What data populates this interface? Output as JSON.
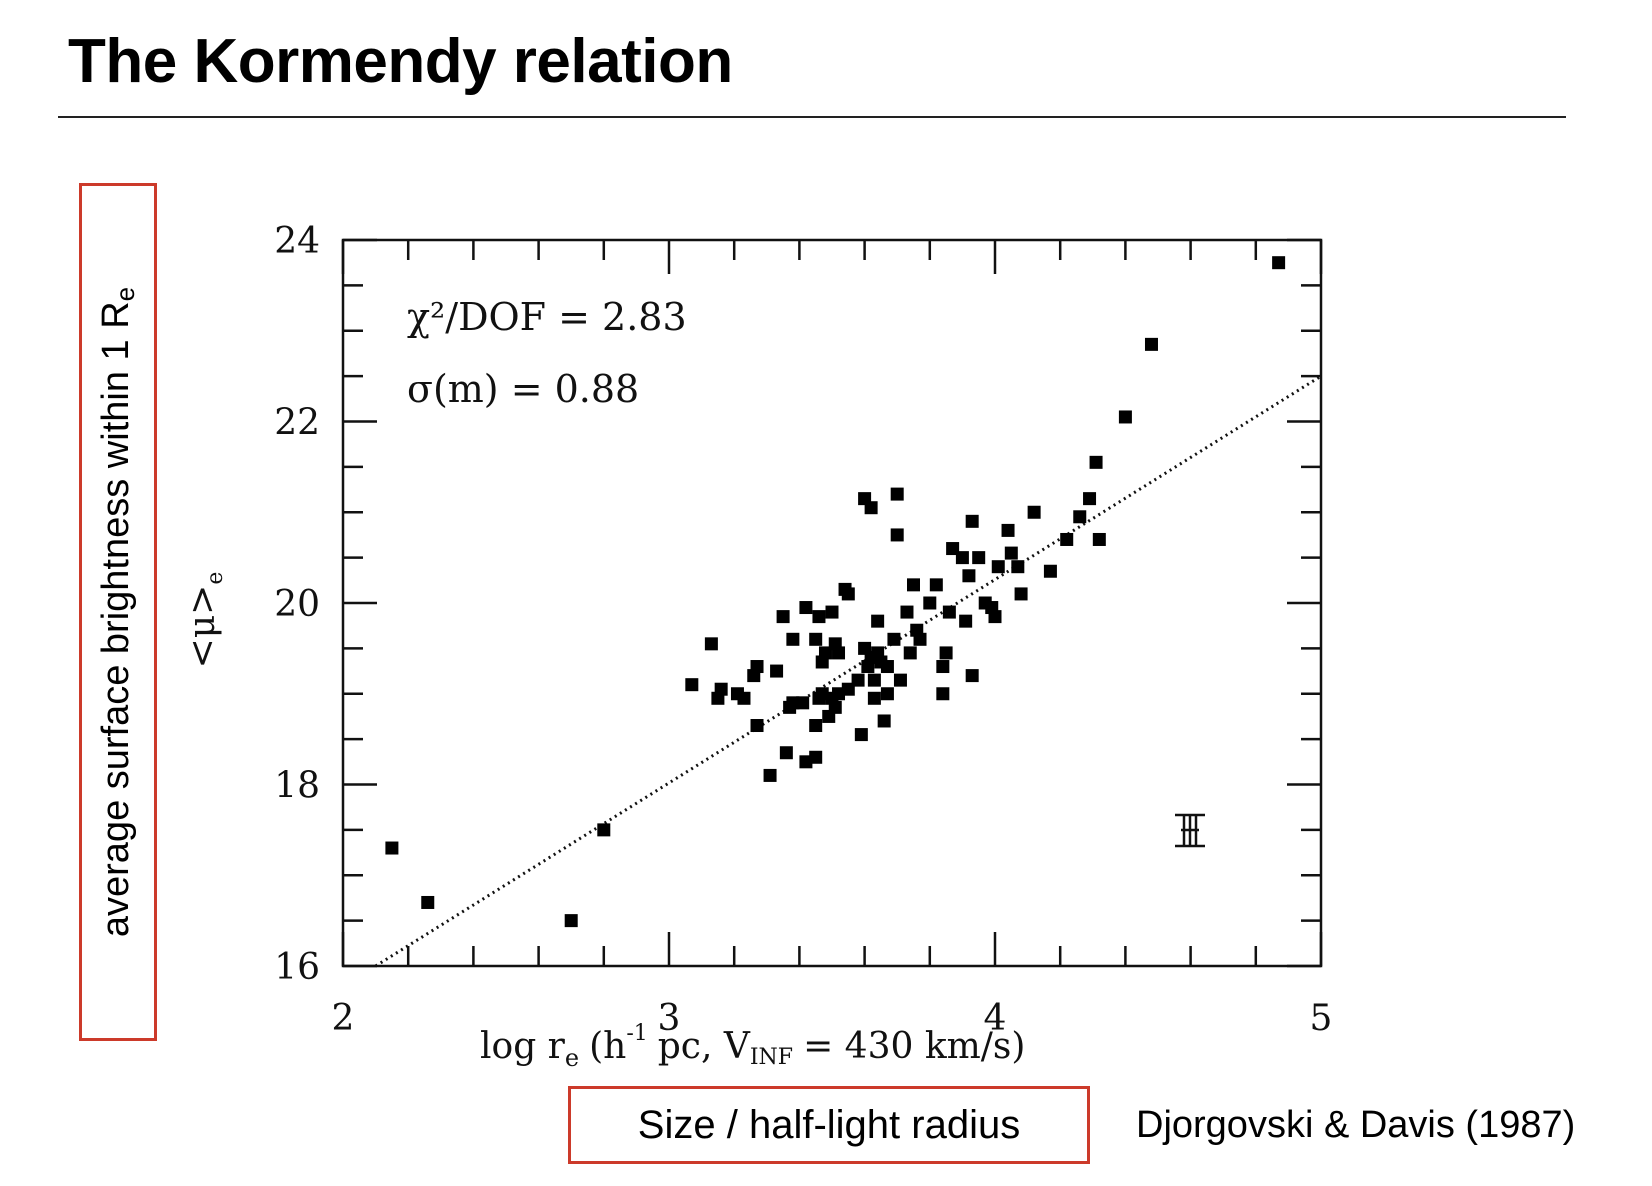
{
  "slide": {
    "title": "The Kormendy relation",
    "ylabel_main": "average surface brightness within 1 R",
    "ylabel_sub": "e",
    "xlabel_note": "Size / half-light radius",
    "citation": "Djorgovski & Davis (1987)"
  },
  "colors": {
    "highlight_box": "#cc3a2a",
    "points": "#000000"
  },
  "chart_data": {
    "type": "scatter",
    "xlabel": "log r",
    "xlabel_sub": "e",
    "xlabel_tail": "(h",
    "xlabel_sup": "-1",
    "xlabel_rest": "pc, V",
    "xlabel_rest_sub": "INF",
    "xlabel_end": "= 430 km/s)",
    "ylabel": "<μ>",
    "ylabel_sub": "e",
    "xlim": [
      2,
      5
    ],
    "ylim": [
      16,
      24
    ],
    "xticks": [
      "2",
      "3",
      "4",
      "5"
    ],
    "yticks": [
      "16",
      "18",
      "20",
      "22",
      "24"
    ],
    "annotations": [
      "χ²/DOF = 2.83",
      "σ(m) = 0.88"
    ],
    "fit_line": {
      "x": [
        2.1,
        5.0
      ],
      "y": [
        15.9,
        22.5
      ],
      "style": "dotted"
    },
    "points": [
      [
        2.15,
        17.3
      ],
      [
        2.26,
        16.7
      ],
      [
        2.7,
        16.5
      ],
      [
        2.8,
        17.5
      ],
      [
        3.07,
        19.1
      ],
      [
        3.13,
        19.55
      ],
      [
        3.15,
        18.95
      ],
      [
        3.16,
        19.05
      ],
      [
        3.21,
        19.0
      ],
      [
        3.23,
        18.95
      ],
      [
        3.26,
        19.2
      ],
      [
        3.27,
        19.3
      ],
      [
        3.27,
        18.65
      ],
      [
        3.31,
        18.1
      ],
      [
        3.33,
        19.25
      ],
      [
        3.35,
        19.85
      ],
      [
        3.36,
        18.35
      ],
      [
        3.37,
        18.85
      ],
      [
        3.38,
        19.6
      ],
      [
        3.38,
        18.9
      ],
      [
        3.41,
        18.9
      ],
      [
        3.42,
        19.95
      ],
      [
        3.42,
        18.25
      ],
      [
        3.45,
        18.3
      ],
      [
        3.45,
        19.6
      ],
      [
        3.45,
        18.65
      ],
      [
        3.46,
        19.85
      ],
      [
        3.46,
        18.95
      ],
      [
        3.47,
        19.35
      ],
      [
        3.47,
        19.0
      ],
      [
        3.48,
        19.45
      ],
      [
        3.49,
        18.75
      ],
      [
        3.5,
        19.9
      ],
      [
        3.5,
        18.95
      ],
      [
        3.51,
        19.55
      ],
      [
        3.51,
        18.85
      ],
      [
        3.52,
        19.45
      ],
      [
        3.52,
        19.0
      ],
      [
        3.54,
        20.15
      ],
      [
        3.55,
        20.1
      ],
      [
        3.55,
        19.05
      ],
      [
        3.58,
        19.15
      ],
      [
        3.59,
        18.55
      ],
      [
        3.6,
        21.15
      ],
      [
        3.6,
        19.5
      ],
      [
        3.61,
        19.3
      ],
      [
        3.62,
        21.05
      ],
      [
        3.62,
        19.4
      ],
      [
        3.63,
        19.15
      ],
      [
        3.63,
        18.95
      ],
      [
        3.64,
        19.8
      ],
      [
        3.64,
        19.45
      ],
      [
        3.65,
        19.35
      ],
      [
        3.66,
        18.7
      ],
      [
        3.67,
        19.0
      ],
      [
        3.67,
        19.3
      ],
      [
        3.69,
        19.6
      ],
      [
        3.7,
        21.2
      ],
      [
        3.7,
        20.75
      ],
      [
        3.71,
        19.15
      ],
      [
        3.73,
        19.9
      ],
      [
        3.74,
        19.45
      ],
      [
        3.75,
        20.2
      ],
      [
        3.76,
        19.7
      ],
      [
        3.77,
        19.6
      ],
      [
        3.8,
        20.0
      ],
      [
        3.82,
        20.2
      ],
      [
        3.84,
        19.3
      ],
      [
        3.84,
        19.0
      ],
      [
        3.85,
        19.45
      ],
      [
        3.86,
        19.9
      ],
      [
        3.87,
        20.6
      ],
      [
        3.9,
        20.5
      ],
      [
        3.91,
        19.8
      ],
      [
        3.92,
        20.3
      ],
      [
        3.93,
        20.9
      ],
      [
        3.93,
        19.2
      ],
      [
        3.95,
        20.5
      ],
      [
        3.97,
        20.0
      ],
      [
        3.99,
        19.95
      ],
      [
        4.0,
        19.85
      ],
      [
        4.01,
        20.4
      ],
      [
        4.04,
        20.8
      ],
      [
        4.05,
        20.55
      ],
      [
        4.07,
        20.4
      ],
      [
        4.08,
        20.1
      ],
      [
        4.12,
        21.0
      ],
      [
        4.17,
        20.35
      ],
      [
        4.22,
        20.7
      ],
      [
        4.26,
        20.95
      ],
      [
        4.29,
        21.15
      ],
      [
        4.31,
        21.55
      ],
      [
        4.32,
        20.7
      ],
      [
        4.4,
        22.05
      ],
      [
        4.48,
        22.85
      ],
      [
        4.87,
        23.75
      ]
    ]
  }
}
